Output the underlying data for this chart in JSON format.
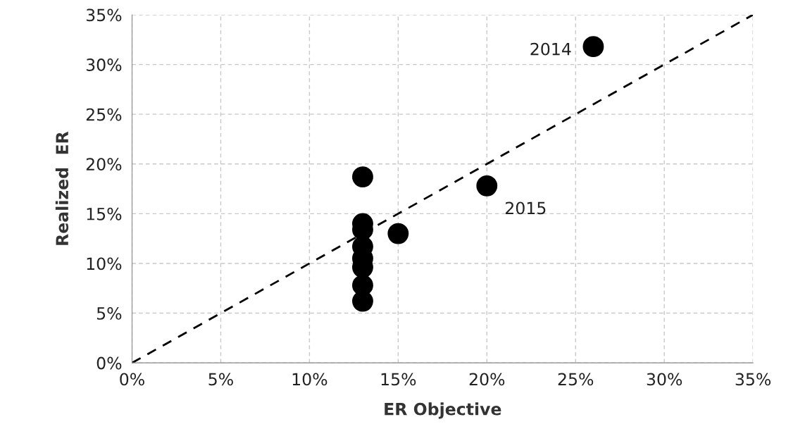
{
  "chart_data": {
    "type": "scatter",
    "xlabel": "ER Objective",
    "ylabel": "Realized  ER",
    "xlim": [
      0,
      35
    ],
    "ylim": [
      0,
      35
    ],
    "xticks": [
      {
        "value": 0,
        "label": "0%"
      },
      {
        "value": 5,
        "label": "5%"
      },
      {
        "value": 10,
        "label": "10%"
      },
      {
        "value": 15,
        "label": "15%"
      },
      {
        "value": 20,
        "label": "20%"
      },
      {
        "value": 25,
        "label": "25%"
      },
      {
        "value": 30,
        "label": "30%"
      },
      {
        "value": 35,
        "label": "35%"
      }
    ],
    "yticks": [
      {
        "value": 0,
        "label": "0%"
      },
      {
        "value": 5,
        "label": "5%"
      },
      {
        "value": 10,
        "label": "10%"
      },
      {
        "value": 15,
        "label": "15%"
      },
      {
        "value": 20,
        "label": "20%"
      },
      {
        "value": 25,
        "label": "25%"
      },
      {
        "value": 30,
        "label": "30%"
      },
      {
        "value": 35,
        "label": "35%"
      }
    ],
    "grid": true,
    "series": [
      {
        "marker": "circle",
        "color": "#000000",
        "x": [
          13,
          13,
          13,
          13,
          13,
          13,
          13,
          13,
          15,
          20,
          26
        ],
        "values": [
          18.7,
          14.0,
          13.4,
          11.7,
          10.5,
          9.6,
          7.8,
          6.2,
          13.0,
          17.8,
          31.8
        ]
      },
      {
        "type": "line",
        "color": "#000000",
        "line_style": "dashed",
        "marker": "none",
        "x": [
          0,
          35
        ],
        "values": [
          0,
          35
        ]
      }
    ],
    "annotations": [
      {
        "text": "2014",
        "x": 26,
        "y": 31.8
      },
      {
        "text": "2015",
        "x": 20,
        "y": 17.8
      }
    ]
  }
}
